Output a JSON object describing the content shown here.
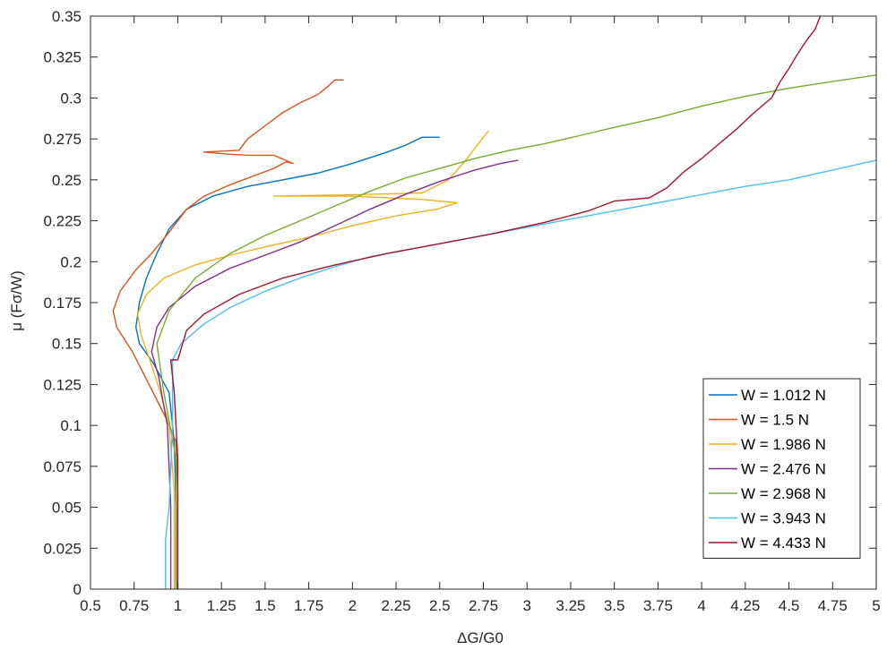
{
  "chart_data": {
    "type": "line",
    "xlabel": "ΔG/G0",
    "ylabel": "μ (Fσ/W)",
    "xlim": [
      0.5,
      5
    ],
    "ylim": [
      0,
      0.35
    ],
    "xticks": [
      "0.5",
      "0.75",
      "1",
      "1.25",
      "1.5",
      "1.75",
      "2",
      "2.25",
      "2.5",
      "2.75",
      "3",
      "3.25",
      "3.5",
      "3.75",
      "4",
      "4.25",
      "4.5",
      "4.75",
      "5"
    ],
    "yticks": [
      "0",
      "0.025",
      "0.05",
      "0.075",
      "0.1",
      "0.125",
      "0.15",
      "0.175",
      "0.2",
      "0.225",
      "0.25",
      "0.275",
      "0.3",
      "0.325",
      "0.35"
    ],
    "grid": false,
    "legend_position": "bottom-right",
    "series": [
      {
        "name": "W = 1.012 N",
        "color": "#0072BD",
        "points": [
          [
            0.99,
            0
          ],
          [
            0.99,
            0.05
          ],
          [
            0.98,
            0.09
          ],
          [
            0.95,
            0.12
          ],
          [
            0.86,
            0.138
          ],
          [
            0.78,
            0.15
          ],
          [
            0.76,
            0.16
          ],
          [
            0.78,
            0.175
          ],
          [
            0.82,
            0.19
          ],
          [
            0.88,
            0.205
          ],
          [
            0.95,
            0.22
          ],
          [
            1.05,
            0.232
          ],
          [
            1.2,
            0.24
          ],
          [
            1.4,
            0.246
          ],
          [
            1.6,
            0.25
          ],
          [
            1.8,
            0.254
          ],
          [
            2.0,
            0.26
          ],
          [
            2.2,
            0.267
          ],
          [
            2.3,
            0.271
          ],
          [
            2.4,
            0.276
          ],
          [
            2.5,
            0.276
          ]
        ]
      },
      {
        "name": "W = 1.5 N",
        "color": "#D95319",
        "points": [
          [
            1.0,
            0
          ],
          [
            1.0,
            0.06
          ],
          [
            0.99,
            0.09
          ],
          [
            0.93,
            0.105
          ],
          [
            0.85,
            0.122
          ],
          [
            0.74,
            0.145
          ],
          [
            0.65,
            0.16
          ],
          [
            0.63,
            0.17
          ],
          [
            0.67,
            0.182
          ],
          [
            0.76,
            0.195
          ],
          [
            0.85,
            0.205
          ],
          [
            0.95,
            0.218
          ],
          [
            1.05,
            0.232
          ],
          [
            1.15,
            0.24
          ],
          [
            1.3,
            0.247
          ],
          [
            1.45,
            0.253
          ],
          [
            1.55,
            0.257
          ],
          [
            1.62,
            0.261
          ],
          [
            1.66,
            0.26
          ],
          [
            1.55,
            0.265
          ],
          [
            1.4,
            0.265
          ],
          [
            1.25,
            0.266
          ],
          [
            1.15,
            0.267
          ],
          [
            1.35,
            0.268
          ],
          [
            1.4,
            0.275
          ],
          [
            1.5,
            0.283
          ],
          [
            1.6,
            0.291
          ],
          [
            1.7,
            0.297
          ],
          [
            1.8,
            0.302
          ],
          [
            1.86,
            0.307
          ],
          [
            1.9,
            0.311
          ],
          [
            1.95,
            0.311
          ]
        ]
      },
      {
        "name": "W = 1.986 N",
        "color": "#EDB120",
        "points": [
          [
            0.98,
            0
          ],
          [
            0.98,
            0.06
          ],
          [
            0.95,
            0.1
          ],
          [
            0.9,
            0.12
          ],
          [
            0.84,
            0.14
          ],
          [
            0.79,
            0.155
          ],
          [
            0.77,
            0.168
          ],
          [
            0.82,
            0.18
          ],
          [
            0.92,
            0.19
          ],
          [
            1.1,
            0.198
          ],
          [
            1.3,
            0.204
          ],
          [
            1.5,
            0.209
          ],
          [
            1.75,
            0.215
          ],
          [
            2.0,
            0.222
          ],
          [
            2.25,
            0.228
          ],
          [
            2.48,
            0.232
          ],
          [
            2.6,
            0.236
          ],
          [
            2.4,
            0.238
          ],
          [
            2.0,
            0.24
          ],
          [
            1.55,
            0.24
          ],
          [
            2.05,
            0.241
          ],
          [
            2.4,
            0.242
          ],
          [
            2.55,
            0.25
          ],
          [
            2.65,
            0.262
          ],
          [
            2.72,
            0.272
          ],
          [
            2.78,
            0.28
          ]
        ]
      },
      {
        "name": "W = 2.476 N",
        "color": "#7E2F8E",
        "points": [
          [
            0.96,
            0
          ],
          [
            0.96,
            0.05
          ],
          [
            0.94,
            0.1
          ],
          [
            0.89,
            0.13
          ],
          [
            0.85,
            0.145
          ],
          [
            0.88,
            0.16
          ],
          [
            0.95,
            0.172
          ],
          [
            1.1,
            0.185
          ],
          [
            1.3,
            0.196
          ],
          [
            1.5,
            0.204
          ],
          [
            1.7,
            0.212
          ],
          [
            1.9,
            0.222
          ],
          [
            2.1,
            0.232
          ],
          [
            2.3,
            0.241
          ],
          [
            2.5,
            0.249
          ],
          [
            2.7,
            0.256
          ],
          [
            2.85,
            0.26
          ],
          [
            2.95,
            0.262
          ]
        ]
      },
      {
        "name": "W = 2.968 N",
        "color": "#77AC30",
        "points": [
          [
            0.99,
            0
          ],
          [
            0.99,
            0.08
          ],
          [
            0.92,
            0.12
          ],
          [
            0.88,
            0.15
          ],
          [
            0.95,
            0.17
          ],
          [
            1.1,
            0.19
          ],
          [
            1.3,
            0.205
          ],
          [
            1.5,
            0.216
          ],
          [
            1.7,
            0.225
          ],
          [
            1.9,
            0.234
          ],
          [
            2.1,
            0.243
          ],
          [
            2.3,
            0.251
          ],
          [
            2.5,
            0.257
          ],
          [
            2.7,
            0.263
          ],
          [
            2.9,
            0.268
          ],
          [
            3.1,
            0.272
          ],
          [
            3.3,
            0.277
          ],
          [
            3.5,
            0.282
          ],
          [
            3.75,
            0.288
          ],
          [
            4.0,
            0.295
          ],
          [
            4.25,
            0.301
          ],
          [
            4.5,
            0.306
          ],
          [
            4.75,
            0.31
          ],
          [
            5.0,
            0.314
          ]
        ]
      },
      {
        "name": "W = 3.943 N",
        "color": "#4DBEEE",
        "points": [
          [
            0.93,
            0
          ],
          [
            0.93,
            0.03
          ],
          [
            0.95,
            0.05
          ],
          [
            0.97,
            0.1
          ],
          [
            0.97,
            0.14
          ],
          [
            1.02,
            0.15
          ],
          [
            1.15,
            0.162
          ],
          [
            1.3,
            0.172
          ],
          [
            1.5,
            0.182
          ],
          [
            1.7,
            0.19
          ],
          [
            1.9,
            0.197
          ],
          [
            2.1,
            0.203
          ],
          [
            2.3,
            0.207
          ],
          [
            2.5,
            0.211
          ],
          [
            2.75,
            0.216
          ],
          [
            3.0,
            0.221
          ],
          [
            3.25,
            0.226
          ],
          [
            3.5,
            0.231
          ],
          [
            3.75,
            0.236
          ],
          [
            4.0,
            0.241
          ],
          [
            4.25,
            0.246
          ],
          [
            4.5,
            0.25
          ],
          [
            4.75,
            0.256
          ],
          [
            5.0,
            0.262
          ]
        ]
      },
      {
        "name": "W = 4.433 N",
        "color": "#A2142F",
        "points": [
          [
            1.0,
            0
          ],
          [
            1.0,
            0.08
          ],
          [
            0.98,
            0.12
          ],
          [
            0.96,
            0.14
          ],
          [
            1.0,
            0.14
          ],
          [
            1.05,
            0.158
          ],
          [
            1.15,
            0.168
          ],
          [
            1.35,
            0.18
          ],
          [
            1.6,
            0.19
          ],
          [
            1.9,
            0.198
          ],
          [
            2.2,
            0.205
          ],
          [
            2.5,
            0.211
          ],
          [
            2.8,
            0.217
          ],
          [
            3.1,
            0.224
          ],
          [
            3.35,
            0.231
          ],
          [
            3.5,
            0.237
          ],
          [
            3.7,
            0.239
          ],
          [
            3.8,
            0.245
          ],
          [
            3.9,
            0.255
          ],
          [
            4.0,
            0.263
          ],
          [
            4.1,
            0.272
          ],
          [
            4.2,
            0.281
          ],
          [
            4.3,
            0.291
          ],
          [
            4.4,
            0.3
          ],
          [
            4.45,
            0.31
          ],
          [
            4.5,
            0.318
          ],
          [
            4.55,
            0.327
          ],
          [
            4.6,
            0.335
          ],
          [
            4.65,
            0.342
          ],
          [
            4.68,
            0.35
          ]
        ]
      }
    ]
  }
}
